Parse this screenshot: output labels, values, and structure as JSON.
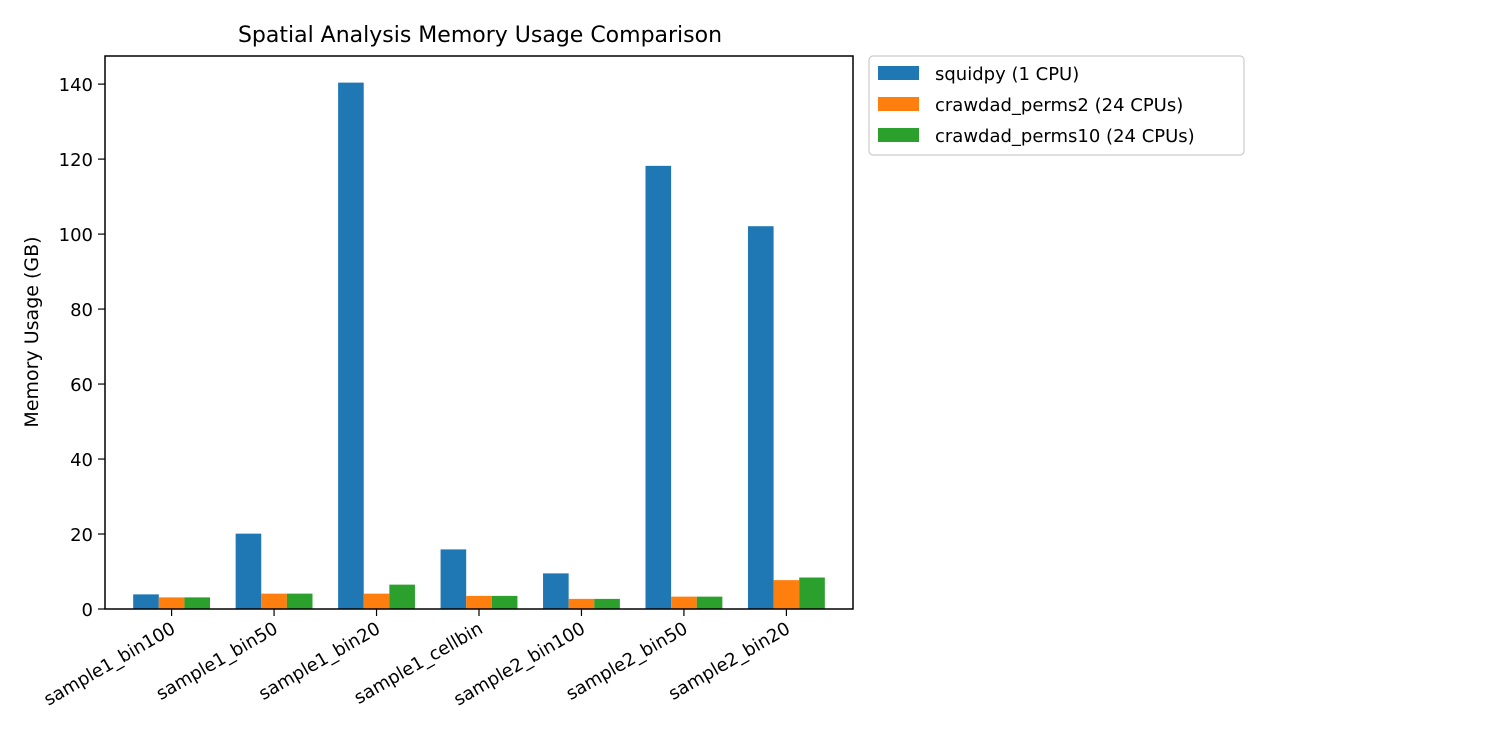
{
  "chart_data": {
    "type": "bar",
    "title": "Spatial Analysis Memory Usage Comparison",
    "xlabel": "",
    "ylabel": "Memory Usage (GB)",
    "ylim": [
      0,
      147.5
    ],
    "yticks": [
      0,
      20,
      40,
      60,
      80,
      100,
      120,
      140
    ],
    "categories": [
      "sample1_bin100",
      "sample1_bin50",
      "sample1_bin20",
      "sample1_cellbin",
      "sample2_bin100",
      "sample2_bin50",
      "sample2_bin20"
    ],
    "series": [
      {
        "name": "squidpy (1 CPU)",
        "color": "#1f77b4",
        "values": [
          3.9,
          20.1,
          140.4,
          15.9,
          9.5,
          118.2,
          102.1
        ]
      },
      {
        "name": "crawdad_perms2 (24 CPUs)",
        "color": "#ff7f0e",
        "values": [
          3.1,
          4.1,
          4.1,
          3.5,
          2.7,
          3.3,
          7.7
        ]
      },
      {
        "name": "crawdad_perms10 (24 CPUs)",
        "color": "#2ca02c",
        "values": [
          3.1,
          4.1,
          6.5,
          3.5,
          2.7,
          3.3,
          8.4
        ]
      }
    ],
    "legend_position": "outside-upper-right",
    "grid": false
  }
}
